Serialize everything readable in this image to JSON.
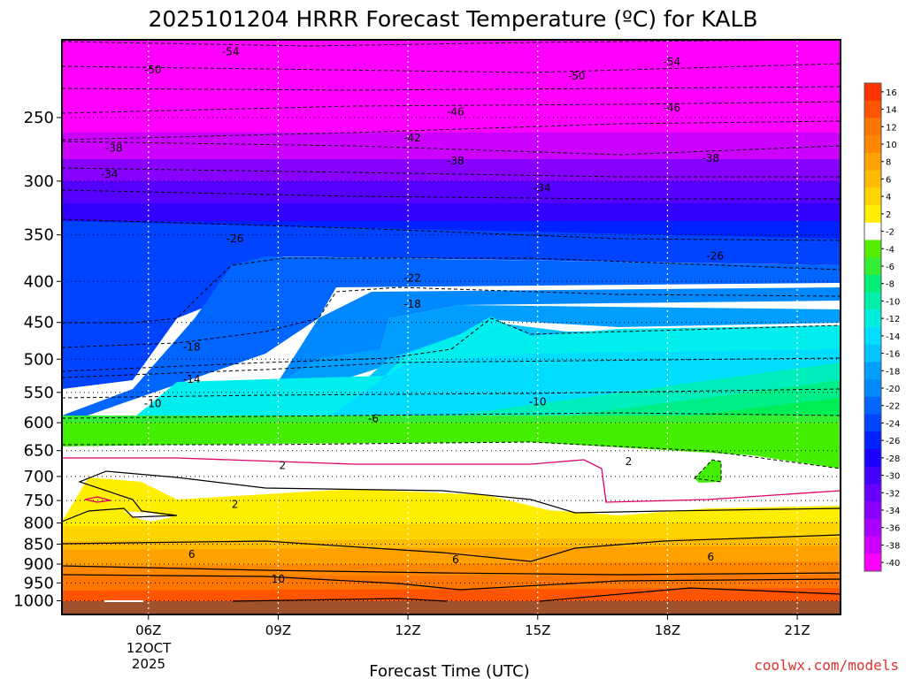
{
  "chart_data": {
    "type": "contour",
    "title": "2025101204 HRRR Forecast Temperature (ºC) for KALB",
    "xlabel": "Forecast Time (UTC)",
    "credit": "coolwx.com/models",
    "credit_color": "#e03030",
    "date_label": [
      "12OCT",
      "2025"
    ],
    "x_ticks": [
      {
        "hour": 6,
        "label": "06Z"
      },
      {
        "hour": 9,
        "label": "09Z"
      },
      {
        "hour": 12,
        "label": "12Z"
      },
      {
        "hour": 15,
        "label": "15Z"
      },
      {
        "hour": 18,
        "label": "18Z"
      },
      {
        "hour": 21,
        "label": "21Z"
      }
    ],
    "xlim": [
      4,
      22
    ],
    "y_axis": "pressure_hPa_log",
    "ylim": [
      200,
      1040
    ],
    "y_ticks": [
      250,
      300,
      350,
      400,
      450,
      500,
      550,
      600,
      650,
      700,
      750,
      800,
      850,
      900,
      950,
      1000
    ],
    "colorbar": {
      "labels": [
        "16",
        "14",
        "12",
        "10",
        "8",
        "6",
        "4",
        "2",
        "-2",
        "-4",
        "-6",
        "-8",
        "-10",
        "-12",
        "-14",
        "-16",
        "-18",
        "-20",
        "-22",
        "-24",
        "-26",
        "-28",
        "-30",
        "-32",
        "-34",
        "-36",
        "-38",
        "-40"
      ],
      "colors": [
        "#ff3300",
        "#ff5500",
        "#ff7700",
        "#ff8800",
        "#ffa200",
        "#ffbb00",
        "#ffd500",
        "#ffee00",
        "#ffffff",
        "#55ee00",
        "#33ee33",
        "#00ee77",
        "#00eeaa",
        "#00eedd",
        "#00ddff",
        "#00c3ff",
        "#009fff",
        "#0088ff",
        "#0066ff",
        "#0044ff",
        "#0022ff",
        "#1a00ff",
        "#4400ff",
        "#6600ff",
        "#8800ff",
        "#aa00ff",
        "#cc00ff",
        "#ff00ff"
      ]
    },
    "contour_labels": [
      {
        "text": "-54",
        "t": 7.9,
        "p": 207
      },
      {
        "text": "-54",
        "t": 18.1,
        "p": 213
      },
      {
        "text": "-50",
        "t": 6.1,
        "p": 218
      },
      {
        "text": "-50",
        "t": 15.9,
        "p": 222
      },
      {
        "text": "-46",
        "t": 13.1,
        "p": 246
      },
      {
        "text": "-46",
        "t": 18.1,
        "p": 243
      },
      {
        "text": "-42",
        "t": 12.1,
        "p": 265
      },
      {
        "text": "-38",
        "t": 5.2,
        "p": 273
      },
      {
        "text": "-38",
        "t": 13.1,
        "p": 283
      },
      {
        "text": "-38",
        "t": 19.0,
        "p": 281
      },
      {
        "text": "-34",
        "t": 5.1,
        "p": 294
      },
      {
        "text": "-34",
        "t": 15.1,
        "p": 306
      },
      {
        "text": "-26",
        "t": 8.0,
        "p": 354
      },
      {
        "text": "-26",
        "t": 19.1,
        "p": 372
      },
      {
        "text": "-22",
        "t": 12.1,
        "p": 396
      },
      {
        "text": "-18",
        "t": 12.1,
        "p": 427
      },
      {
        "text": "-18",
        "t": 7.0,
        "p": 483
      },
      {
        "text": "-14",
        "t": 7.0,
        "p": 530
      },
      {
        "text": "-10",
        "t": 6.1,
        "p": 568
      },
      {
        "text": "-10",
        "t": 15.0,
        "p": 565
      },
      {
        "text": "-6",
        "t": 11.2,
        "p": 593
      },
      {
        "text": "2",
        "t": 9.1,
        "p": 678
      },
      {
        "text": "2",
        "t": 17.1,
        "p": 671
      },
      {
        "text": "2",
        "t": 8.0,
        "p": 758
      },
      {
        "text": "6",
        "t": 7.0,
        "p": 875
      },
      {
        "text": "6",
        "t": 13.1,
        "p": 889
      },
      {
        "text": "6",
        "t": 19.0,
        "p": 882
      },
      {
        "text": "10",
        "t": 9.0,
        "p": 940
      }
    ]
  }
}
